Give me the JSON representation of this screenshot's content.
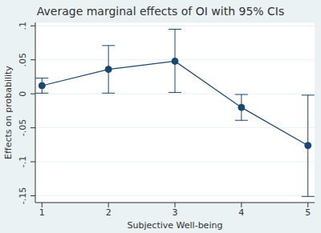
{
  "chart_data": {
    "type": "line",
    "title": "Average marginal effects of OI with 95% CIs",
    "x_label": "Subjective Well-being",
    "y_label": "Effects on probability",
    "x": [
      1,
      2,
      3,
      4,
      5
    ],
    "values": [
      0.012,
      0.036,
      0.048,
      -0.02,
      -0.076
    ],
    "ci_lower": [
      0.001,
      0.001,
      0.002,
      -0.039,
      -0.151
    ],
    "ci_upper": [
      0.023,
      0.071,
      0.095,
      -0.001,
      -0.002
    ],
    "color": "#1a476f",
    "marker": "circle",
    "xlim": [
      0.9,
      5.1
    ],
    "xticks": [
      1,
      2,
      3,
      4,
      5
    ],
    "ylim": [
      -0.16,
      0.105
    ],
    "yticks": [
      {
        "value": -0.15,
        "label": "-.15"
      },
      {
        "value": -0.1,
        "label": "-.1"
      },
      {
        "value": -0.05,
        "label": "-.05"
      },
      {
        "value": 0,
        "label": "0"
      },
      {
        "value": 0.05,
        "label": ".05"
      },
      {
        "value": 0.1,
        "label": ".1"
      }
    ],
    "grid": true
  }
}
